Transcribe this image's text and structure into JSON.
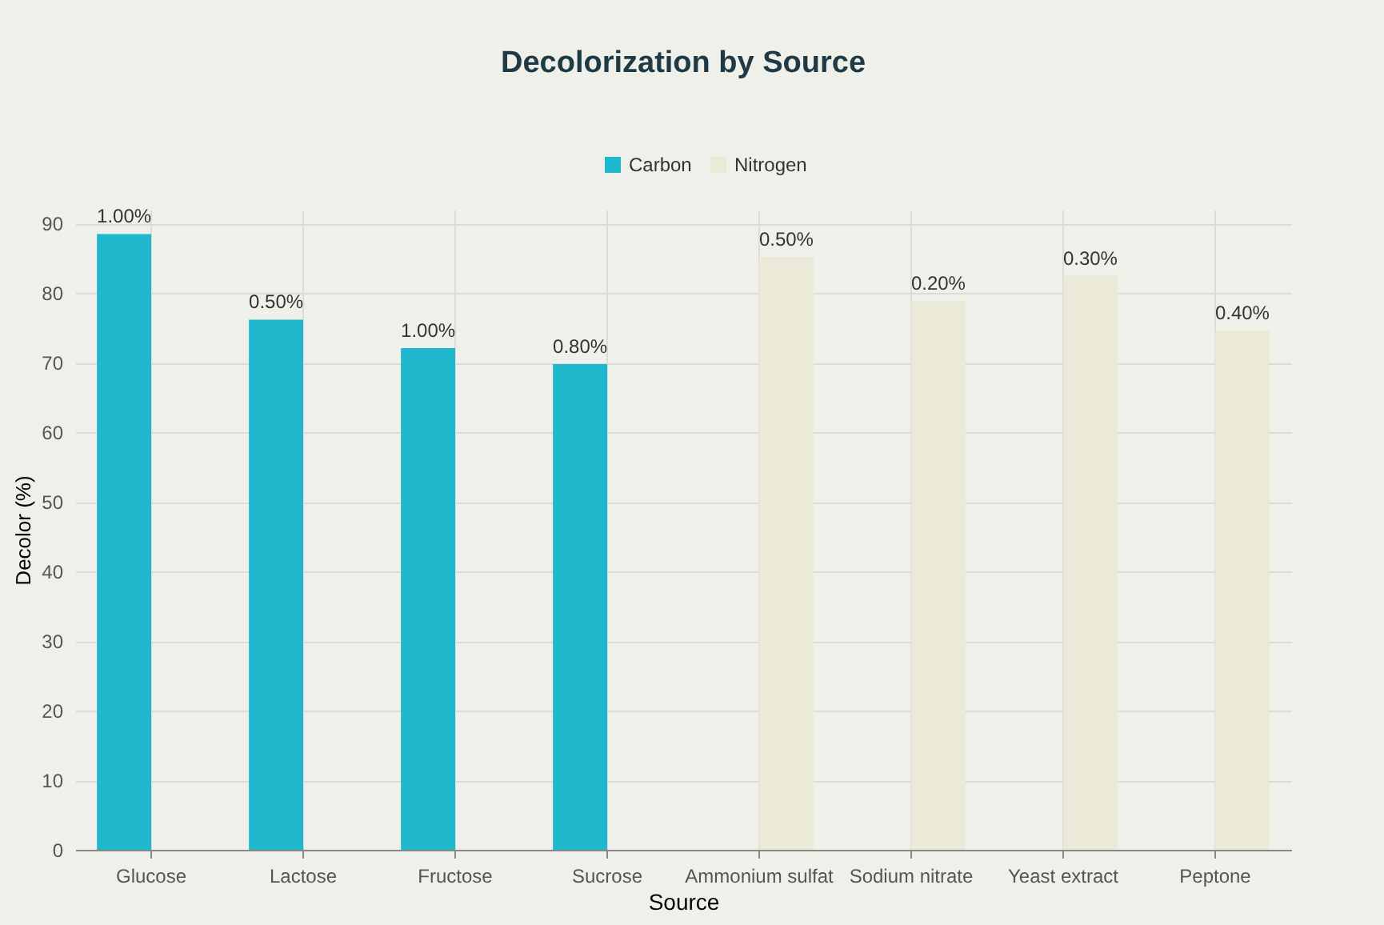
{
  "chart_data": {
    "type": "bar",
    "title": "Decolorization by Source",
    "xlabel": "Source",
    "ylabel": "Decolor (%)",
    "categories": [
      "Glucose",
      "Lactose",
      "Fructose",
      "Sucrose",
      "Ammonium sulfat",
      "Sodium nitrate",
      "Yeast extract",
      "Peptone"
    ],
    "series": [
      {
        "name": "Carbon",
        "color": "#1fb8cd",
        "values": [
          88.5,
          76.2,
          72.1,
          69.8,
          null,
          null,
          null,
          null
        ]
      },
      {
        "name": "Nitrogen",
        "color": "#ebe9d8",
        "values": [
          null,
          null,
          null,
          null,
          85.2,
          78.9,
          82.5,
          74.6
        ]
      }
    ],
    "annotations": [
      {
        "text": "1.00%",
        "x": "Glucose",
        "y": 88.5
      },
      {
        "text": "0.50%",
        "x": "Lactose",
        "y": 76.2
      },
      {
        "text": "1.00%",
        "x": "Fructose",
        "y": 72.1
      },
      {
        "text": "0.80%",
        "x": "Sucrose",
        "y": 69.8
      },
      {
        "text": "0.50%",
        "x": "Ammonium sulfat",
        "y": 85.2
      },
      {
        "text": "0.20%",
        "x": "Sodium nitrate",
        "y": 78.9
      },
      {
        "text": "0.30%",
        "x": "Yeast extract",
        "y": 82.5
      },
      {
        "text": "0.40%",
        "x": "Peptone",
        "y": 74.6
      }
    ],
    "ylim": [
      0,
      92
    ],
    "yticks": [
      0,
      10,
      20,
      30,
      40,
      50,
      60,
      70,
      80,
      90
    ],
    "grid": true,
    "legend": "top"
  }
}
